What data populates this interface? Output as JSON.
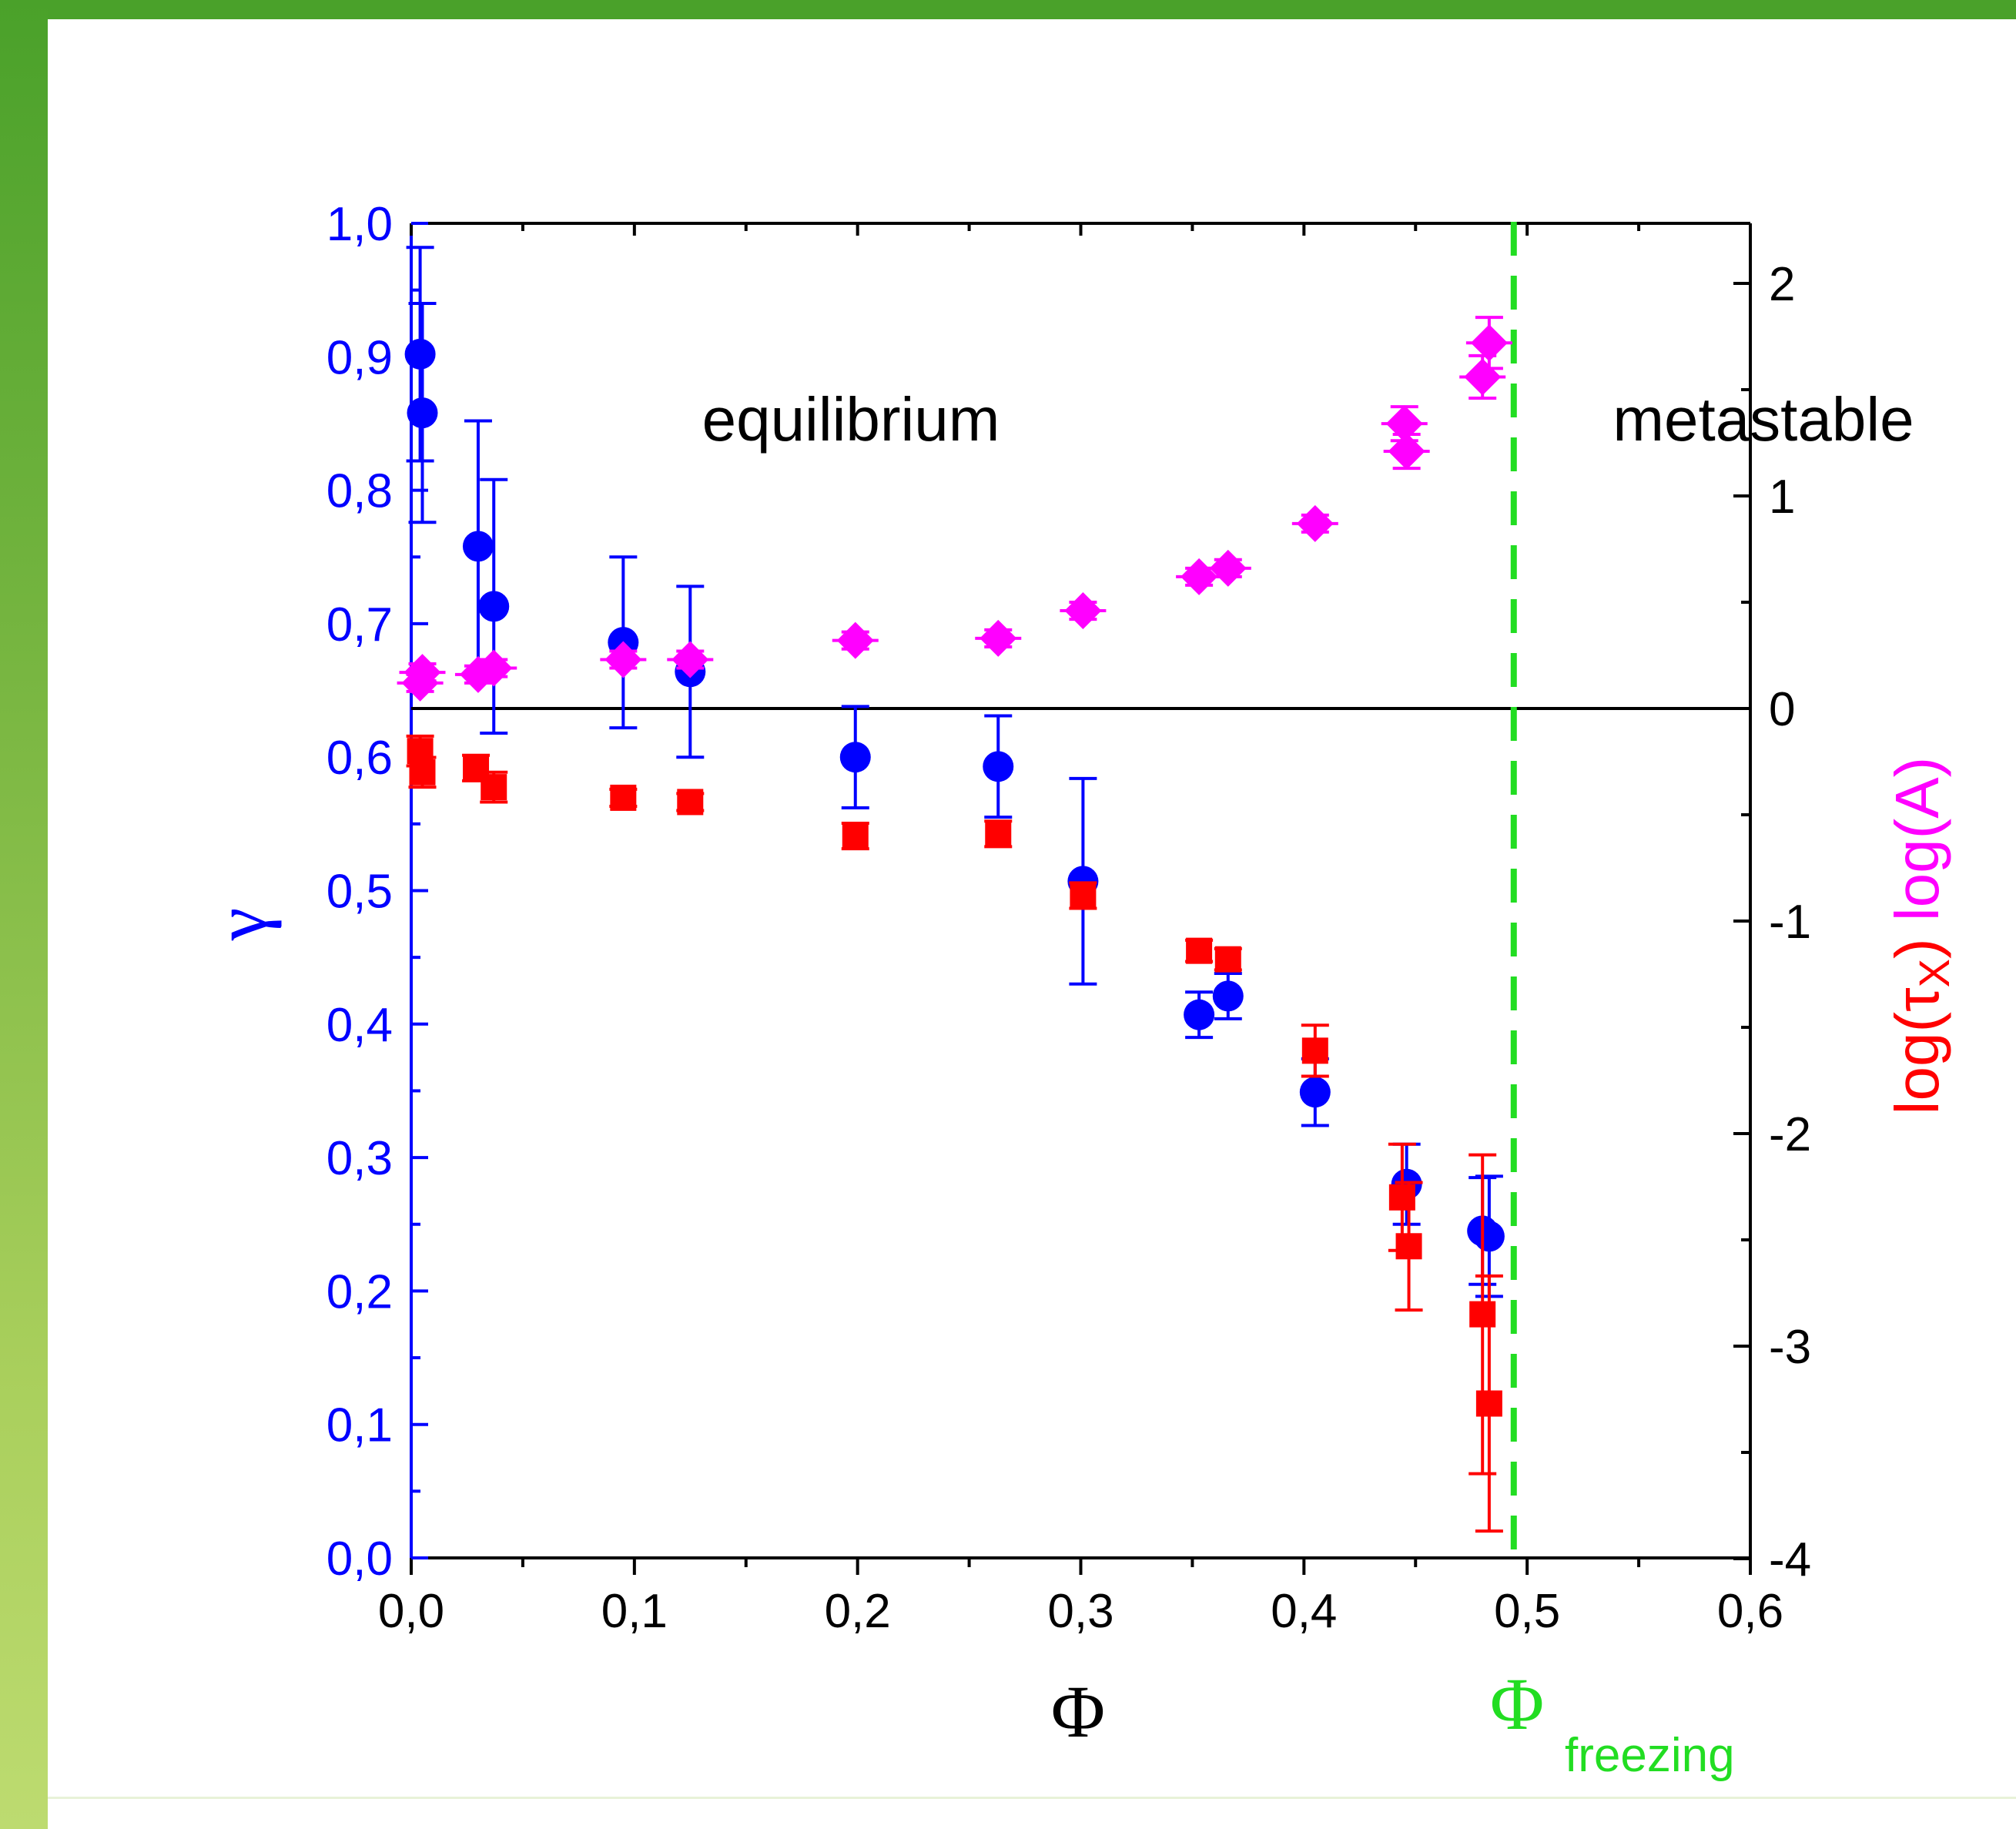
{
  "chart_data": {
    "type": "scatter",
    "title": "",
    "xlabel": "Φ",
    "ylabel_left": "γ",
    "ylabel_right": {
      "part1": "log(τ",
      "sub": "X",
      "part2": ")",
      "part3": " log(A)"
    },
    "xlim": [
      0,
      0.6
    ],
    "ylim_left": [
      0,
      1.0
    ],
    "ylim_right": [
      -4,
      2.3
    ],
    "xticks": [
      0.0,
      0.1,
      0.2,
      0.3,
      0.4,
      0.5,
      0.6
    ],
    "xtick_labels": [
      "0,0",
      "0,1",
      "0,2",
      "0,3",
      "0,4",
      "0,5",
      "0,6"
    ],
    "yticks_left": [
      0.0,
      0.1,
      0.2,
      0.3,
      0.4,
      0.5,
      0.6,
      0.7,
      0.8,
      0.9,
      1.0
    ],
    "ytick_labels_left": [
      "0,0",
      "0,1",
      "0,2",
      "0,3",
      "0,4",
      "0,5",
      "0,6",
      "0,7",
      "0,8",
      "0,9",
      "1,0"
    ],
    "yticks_right": [
      -4,
      -3,
      -2,
      -1,
      0,
      1,
      2
    ],
    "ytick_labels_right": [
      "-4",
      "-3",
      "-2",
      "-1",
      "0",
      "1",
      "2"
    ],
    "zero_line_right": 0,
    "freezing_line_x": 0.494,
    "colors": {
      "gamma": "#0000ff",
      "tau": "#ff0000",
      "A": "#ff00ff",
      "freezing": "#22dd22",
      "axis": "#000000"
    },
    "annotations": {
      "equilibrium": "equilibrium",
      "metastable": "metastable",
      "freezing_symbol": "Φ",
      "freezing_sub": "freezing"
    },
    "series": [
      {
        "name": "γ",
        "axis": "left",
        "marker": "circle",
        "color": "#0000ff",
        "points": [
          {
            "x": 0.004,
            "y": 0.902,
            "err": 0.08
          },
          {
            "x": 0.005,
            "y": 0.858,
            "err": 0.082
          },
          {
            "x": 0.03,
            "y": 0.758,
            "err": 0.094
          },
          {
            "x": 0.037,
            "y": 0.713,
            "err": 0.095
          },
          {
            "x": 0.095,
            "y": 0.686,
            "err": 0.064
          },
          {
            "x": 0.125,
            "y": 0.664,
            "err": 0.064
          },
          {
            "x": 0.199,
            "y": 0.6,
            "err": 0.038
          },
          {
            "x": 0.263,
            "y": 0.593,
            "err": 0.038
          },
          {
            "x": 0.301,
            "y": 0.507,
            "err": 0.077
          },
          {
            "x": 0.353,
            "y": 0.407,
            "err": 0.017
          },
          {
            "x": 0.366,
            "y": 0.421,
            "err": 0.017
          },
          {
            "x": 0.405,
            "y": 0.349,
            "err": 0.025
          },
          {
            "x": 0.446,
            "y": 0.28,
            "err": 0.03
          },
          {
            "x": 0.48,
            "y": 0.245,
            "err": 0.04
          },
          {
            "x": 0.483,
            "y": 0.241,
            "err": 0.045
          }
        ]
      },
      {
        "name": "log(τX)",
        "axis": "right",
        "marker": "square",
        "color": "#ff0000",
        "points": [
          {
            "x": 0.004,
            "y": -0.2,
            "err": 0.07
          },
          {
            "x": 0.005,
            "y": -0.3,
            "err": 0.07
          },
          {
            "x": 0.029,
            "y": -0.28,
            "err": 0.06
          },
          {
            "x": 0.037,
            "y": -0.37,
            "err": 0.07
          },
          {
            "x": 0.095,
            "y": -0.42,
            "err": 0.04
          },
          {
            "x": 0.125,
            "y": -0.44,
            "err": 0.04
          },
          {
            "x": 0.199,
            "y": -0.6,
            "err": 0.06
          },
          {
            "x": 0.263,
            "y": -0.59,
            "err": 0.06
          },
          {
            "x": 0.301,
            "y": -0.88,
            "err": 0.06
          },
          {
            "x": 0.353,
            "y": -1.14,
            "err": 0.05
          },
          {
            "x": 0.366,
            "y": -1.18,
            "err": 0.05
          },
          {
            "x": 0.405,
            "y": -1.61,
            "err": 0.12
          },
          {
            "x": 0.444,
            "y": -2.3,
            "err": 0.25
          },
          {
            "x": 0.447,
            "y": -2.53,
            "err": 0.3
          },
          {
            "x": 0.48,
            "y": -2.85,
            "err": 0.75
          },
          {
            "x": 0.483,
            "y": -3.27,
            "err": 0.6
          }
        ]
      },
      {
        "name": "log(A)",
        "axis": "right",
        "marker": "diamond",
        "color": "#ff00ff",
        "points": [
          {
            "x": 0.004,
            "y": 0.12,
            "err": 0.04
          },
          {
            "x": 0.005,
            "y": 0.17,
            "err": 0.04
          },
          {
            "x": 0.03,
            "y": 0.16,
            "err": 0.04
          },
          {
            "x": 0.037,
            "y": 0.19,
            "err": 0.04
          },
          {
            "x": 0.095,
            "y": 0.23,
            "err": 0.04
          },
          {
            "x": 0.125,
            "y": 0.23,
            "err": 0.04
          },
          {
            "x": 0.199,
            "y": 0.32,
            "err": 0.04
          },
          {
            "x": 0.263,
            "y": 0.33,
            "err": 0.04
          },
          {
            "x": 0.301,
            "y": 0.46,
            "err": 0.04
          },
          {
            "x": 0.353,
            "y": 0.62,
            "err": 0.04
          },
          {
            "x": 0.366,
            "y": 0.66,
            "err": 0.04
          },
          {
            "x": 0.405,
            "y": 0.87,
            "err": 0.04
          },
          {
            "x": 0.445,
            "y": 1.34,
            "err": 0.08
          },
          {
            "x": 0.446,
            "y": 1.21,
            "err": 0.08
          },
          {
            "x": 0.48,
            "y": 1.56,
            "err": 0.1
          },
          {
            "x": 0.483,
            "y": 1.72,
            "err": 0.12
          }
        ]
      }
    ]
  }
}
